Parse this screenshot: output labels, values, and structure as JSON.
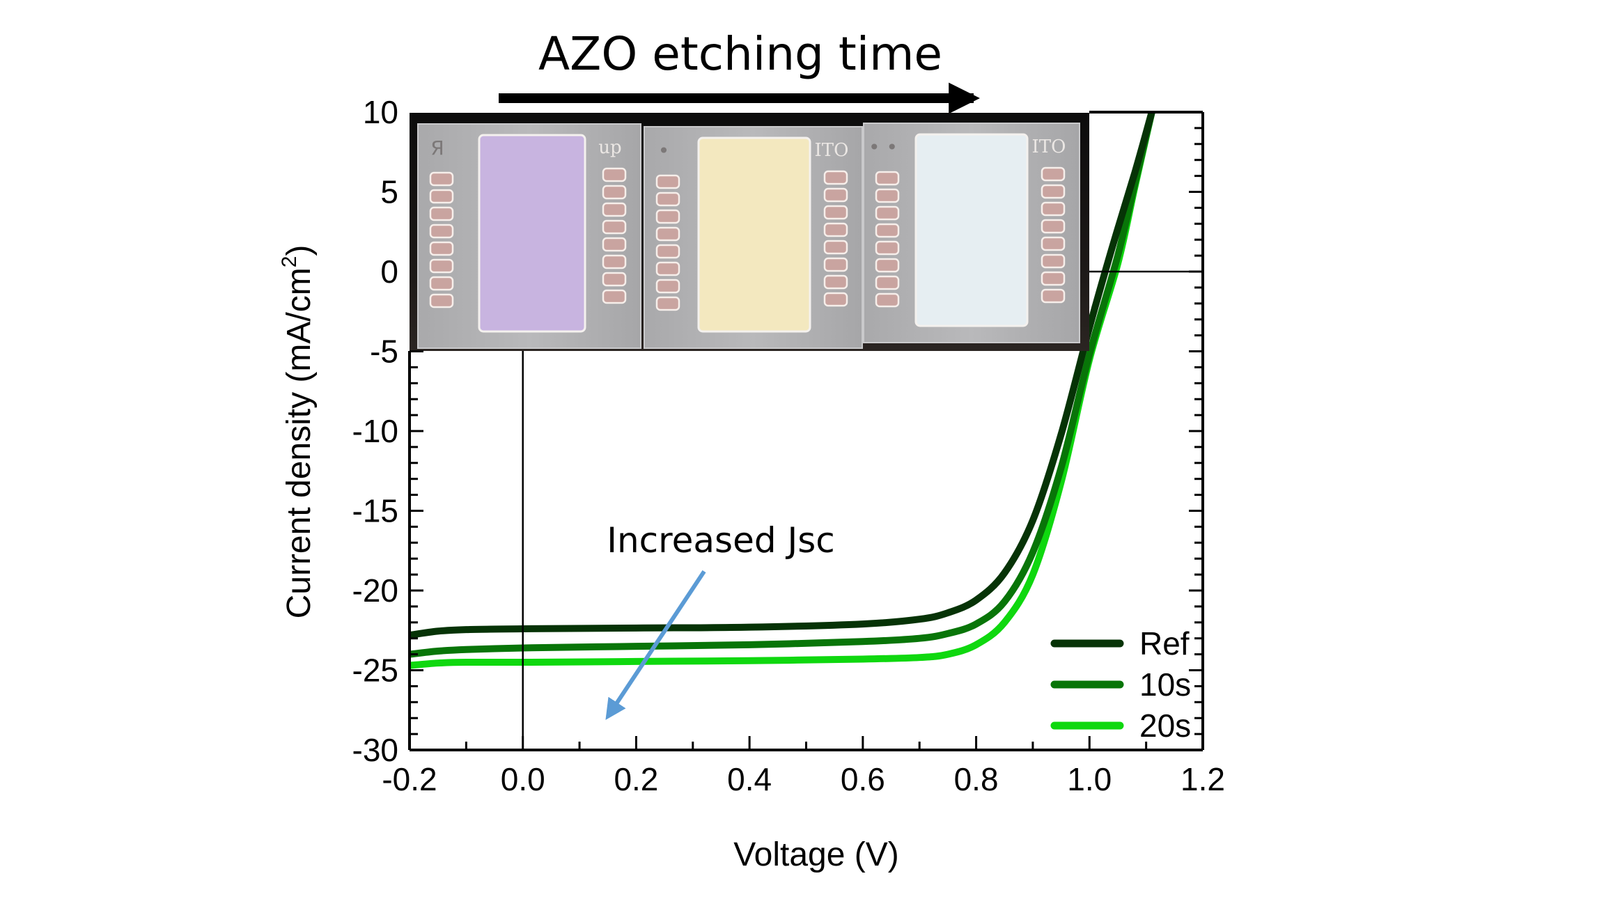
{
  "chart_data": {
    "type": "line",
    "title": "AZO etching time",
    "xlabel": "Voltage (V)",
    "ylabel": "Current density (mA/cm",
    "ylabel_superscript": "2",
    "ylabel_close": ")",
    "xlim": [
      -0.2,
      1.2
    ],
    "ylim": [
      -30,
      10
    ],
    "x_ticks": [
      -0.2,
      0.0,
      0.2,
      0.4,
      0.6,
      0.8,
      1.0,
      1.2
    ],
    "x_tick_labels": [
      "-0.2",
      "0.0",
      "0.2",
      "0.4",
      "0.6",
      "0.8",
      "1.0",
      "1.2"
    ],
    "y_ticks": [
      10,
      5,
      0,
      -5,
      -10,
      -15,
      -20,
      -25,
      -30
    ],
    "y_tick_labels": [
      "10",
      "5",
      "0",
      "-5",
      "-10",
      "-15",
      "-20",
      "-25",
      "-30"
    ],
    "grid": false,
    "legend_position": "bottom-right",
    "series": [
      {
        "name": "Ref",
        "color": "#063306",
        "x": [
          -0.2,
          -0.15,
          -0.1,
          0.0,
          0.2,
          0.4,
          0.6,
          0.7,
          0.75,
          0.8,
          0.85,
          0.9,
          0.95,
          1.0,
          1.04,
          1.08,
          1.11
        ],
        "y": [
          -22.8,
          -22.55,
          -22.45,
          -22.4,
          -22.35,
          -22.3,
          -22.1,
          -21.8,
          -21.4,
          -20.6,
          -18.9,
          -15.6,
          -10.2,
          -3.5,
          1.5,
          6.2,
          10
        ]
      },
      {
        "name": "10s",
        "color": "#087508",
        "x": [
          -0.2,
          -0.15,
          -0.1,
          0.0,
          0.2,
          0.4,
          0.6,
          0.7,
          0.75,
          0.8,
          0.85,
          0.9,
          0.95,
          1.0,
          1.05,
          1.08,
          1.11
        ],
        "y": [
          -24.0,
          -23.8,
          -23.7,
          -23.6,
          -23.5,
          -23.4,
          -23.2,
          -23.0,
          -22.7,
          -22.1,
          -20.7,
          -17.6,
          -12.3,
          -5.2,
          1.0,
          5.5,
          10
        ]
      },
      {
        "name": "20s",
        "color": "#0fd80f",
        "x": [
          -0.2,
          -0.15,
          -0.1,
          0.0,
          0.2,
          0.4,
          0.6,
          0.7,
          0.75,
          0.8,
          0.85,
          0.9,
          0.95,
          1.0,
          1.05,
          1.08,
          1.11
        ],
        "y": [
          -24.7,
          -24.55,
          -24.5,
          -24.5,
          -24.45,
          -24.4,
          -24.3,
          -24.2,
          -24.0,
          -23.4,
          -22.0,
          -19.0,
          -13.2,
          -5.5,
          0.5,
          5.3,
          10
        ]
      }
    ],
    "annotations": [
      {
        "text": "Increased Jsc",
        "arrow_color": "#5b9bd5",
        "arrow_from": [
          0.32,
          -18.8
        ],
        "arrow_to": [
          0.15,
          -27.9
        ]
      }
    ],
    "header_arrow": {
      "text": "AZO etching time",
      "color": "#000000"
    },
    "inset_photo": {
      "description": "Photo of three device substrates with increasing AZO etching time",
      "substrates": [
        {
          "label": "up",
          "corner_mark": "Я",
          "film_color": "#c8b4e0"
        },
        {
          "label": "ITO",
          "corner_mark": "•",
          "film_color": "#f3e8bf"
        },
        {
          "label": "ITO",
          "corner_mark": "• •",
          "film_color": "#e6eef2"
        }
      ]
    }
  }
}
